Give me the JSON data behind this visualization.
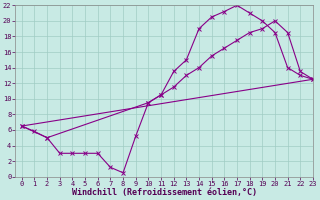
{
  "xlabel": "Windchill (Refroidissement éolien,°C)",
  "bg_color": "#c8eae4",
  "grid_color": "#a0ccc4",
  "line_color": "#880088",
  "line1_x": [
    0,
    1,
    2,
    3,
    4,
    5,
    6,
    7,
    8,
    9,
    10,
    11,
    12,
    13,
    14,
    15,
    16,
    17,
    18,
    19,
    20,
    21,
    22,
    23
  ],
  "line1_y": [
    6.5,
    5.8,
    5.0,
    3.0,
    3.0,
    3.0,
    3.0,
    1.2,
    0.5,
    5.2,
    9.5,
    10.5,
    13.5,
    15.0,
    19.0,
    20.5,
    21.2,
    22.0,
    21.0,
    20.0,
    18.5,
    14.0,
    13.0,
    12.5
  ],
  "line2_x": [
    0,
    2,
    10,
    11,
    12,
    13,
    14,
    15,
    16,
    17,
    18,
    19,
    20,
    21,
    22,
    23
  ],
  "line2_y": [
    6.5,
    5.0,
    9.5,
    10.5,
    11.5,
    13.0,
    14.0,
    15.5,
    16.5,
    17.5,
    18.5,
    19.0,
    20.0,
    18.5,
    13.5,
    12.5
  ],
  "line3_x": [
    0,
    23
  ],
  "line3_y": [
    6.5,
    12.5
  ],
  "xlim": [
    -0.5,
    23
  ],
  "ylim": [
    0,
    22
  ],
  "xticks": [
    0,
    1,
    2,
    3,
    4,
    5,
    6,
    7,
    8,
    9,
    10,
    11,
    12,
    13,
    14,
    15,
    16,
    17,
    18,
    19,
    20,
    21,
    22,
    23
  ],
  "yticks": [
    0,
    2,
    4,
    6,
    8,
    10,
    12,
    14,
    16,
    18,
    20,
    22
  ],
  "tick_fontsize": 5,
  "xlabel_fontsize": 6
}
